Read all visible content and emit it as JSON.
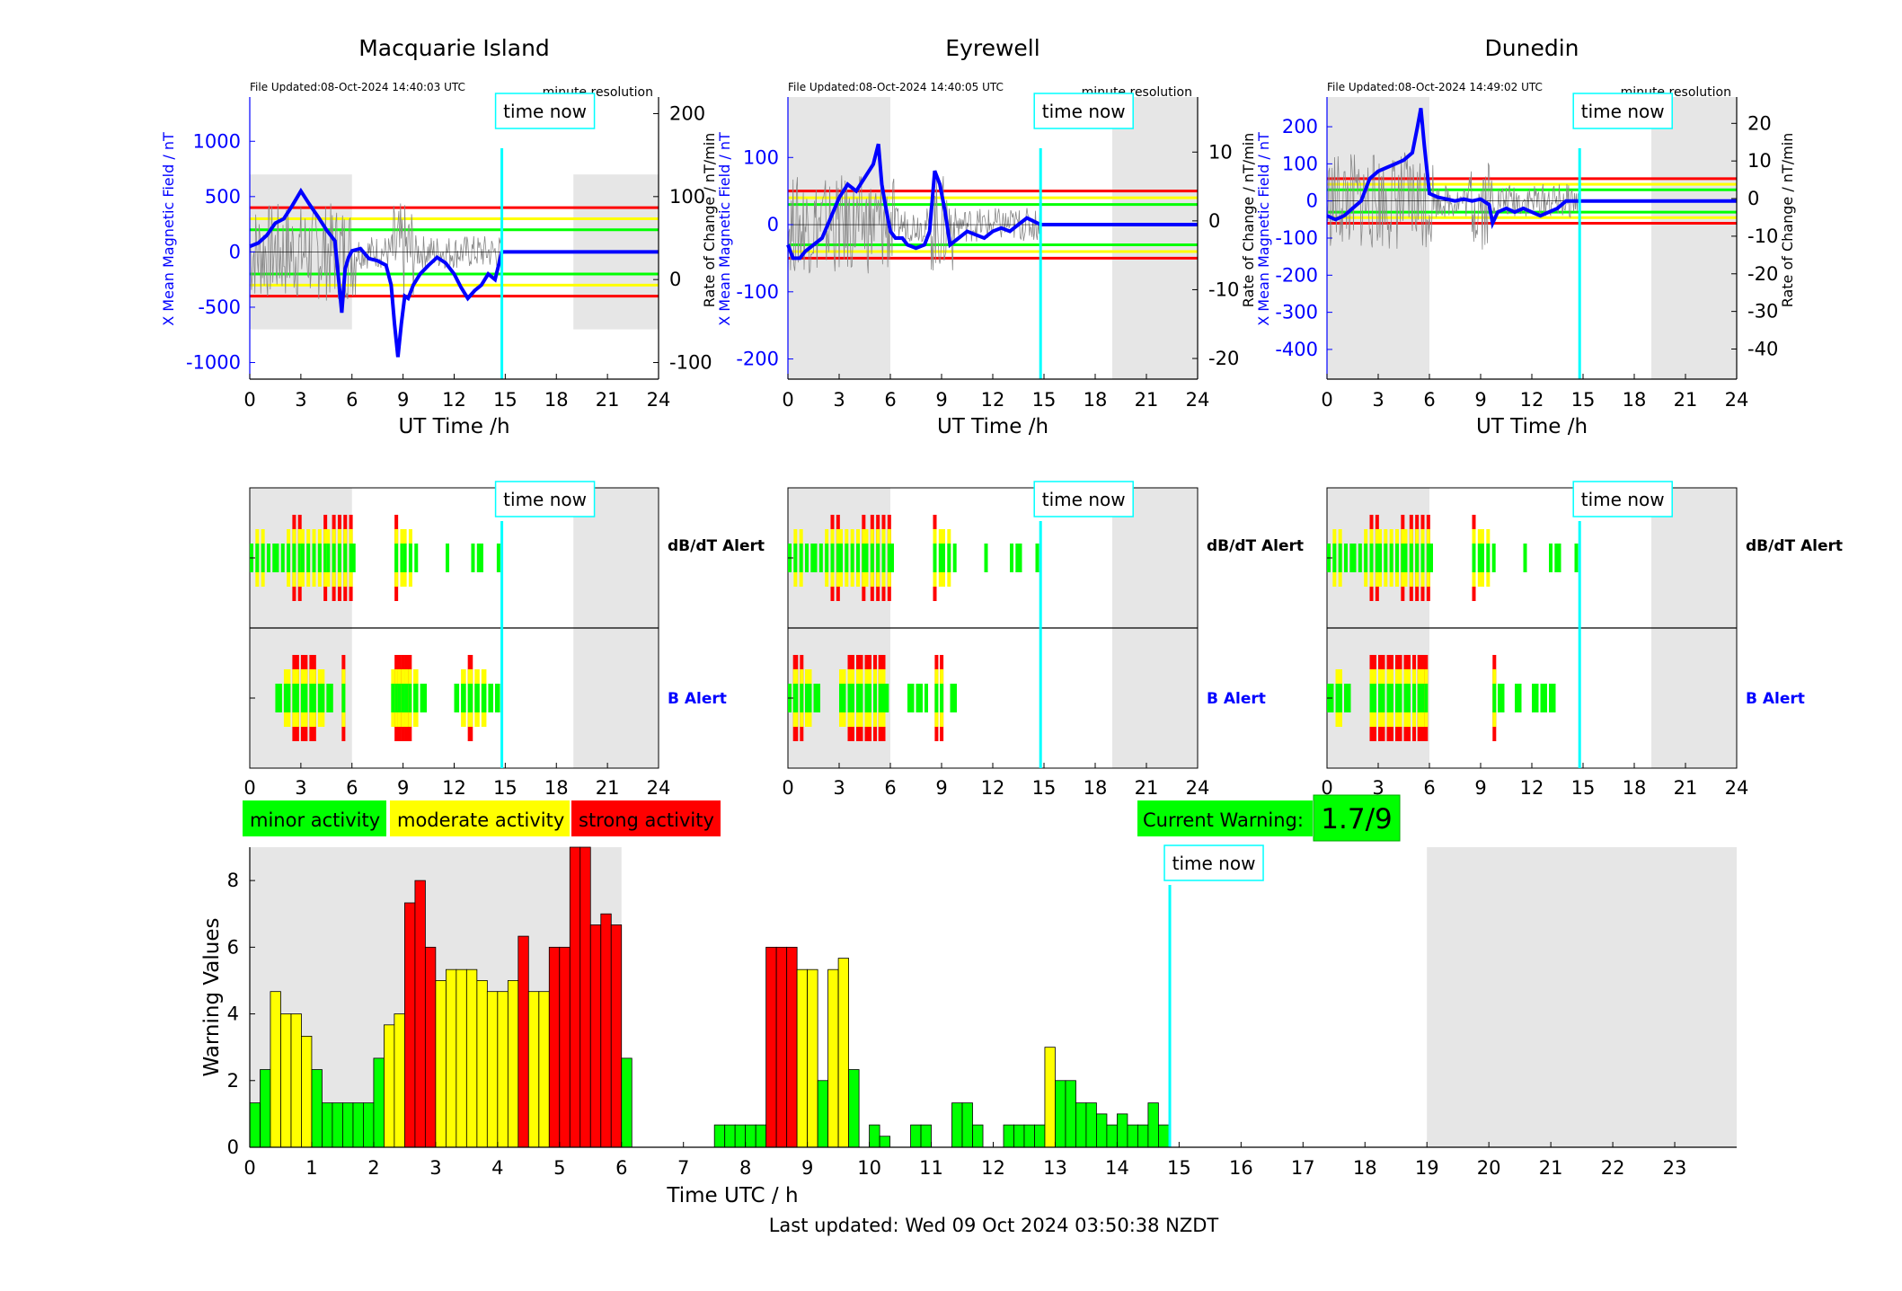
{
  "colors": {
    "minor": "#00ff00",
    "moderate": "#ffff00",
    "strong": "#ff0000",
    "time_now": "#00ffff",
    "mean_field": "#0000ff",
    "night_shade": "#e6e6e6"
  },
  "time_now_label": "time now",
  "time_now_h": 14.8,
  "ut_ticks": [
    "0",
    "3",
    "6",
    "9",
    "12",
    "15",
    "18",
    "21",
    "24"
  ],
  "ut_xlabel": "UT Time /h",
  "file_resolution": "minute resolution",
  "stations": [
    {
      "name": "Macquarie Island",
      "file_updated": "File Updated:08-Oct-2024 14:40:03 UTC",
      "ylabel_left": "X Mean Magnetic Field / nT",
      "ylabel_right": "Rate of Change / nT/min",
      "yticks_left": [
        "1000",
        "500",
        "0",
        "-500",
        "-1000"
      ],
      "yticks_right": [
        "200",
        "100",
        "0",
        "-100"
      ],
      "shade_ranges_h": [
        [
          0,
          6
        ],
        [
          19,
          24
        ]
      ],
      "thresholds_nT": {
        "minor": 200,
        "moderate": 300,
        "strong": 400
      },
      "chart_data": {
        "type": "line",
        "xlabel": "UT Time /h",
        "ylabel": "X Mean Magnetic Field / nT",
        "xlim": [
          0,
          24
        ],
        "ylim": [
          -1150,
          1400
        ],
        "series": [
          {
            "x": [
              0,
              0.5,
              1,
              1.5,
              2,
              2.5,
              3,
              3.5,
              4,
              4.5,
              5,
              5.4,
              5.6,
              5.8,
              6,
              6.5,
              7,
              7.5,
              8,
              8.3,
              8.5,
              8.7,
              8.9,
              9.1,
              9.3,
              9.6,
              10,
              10.5,
              11,
              11.5,
              12,
              12.4,
              12.8,
              13.2,
              13.6,
              14,
              14.4,
              14.8,
              24
            ],
            "values": [
              50,
              80,
              150,
              260,
              300,
              420,
              550,
              430,
              320,
              200,
              100,
              -550,
              -150,
              -50,
              10,
              30,
              -60,
              -80,
              -120,
              -300,
              -650,
              -950,
              -650,
              -400,
              -420,
              -300,
              -200,
              -120,
              -50,
              -100,
              -200,
              -320,
              -420,
              -350,
              -300,
              -200,
              -250,
              0,
              0
            ]
          }
        ]
      },
      "rate_range": [
        -120,
        220
      ]
    },
    {
      "name": "Eyrewell",
      "file_updated": "File Updated:08-Oct-2024 14:40:05 UTC",
      "ylabel_left": "X Mean Magnetic Field / nT",
      "ylabel_right": "Rate of Change / nT/min",
      "yticks_left": [
        "100",
        "0",
        "-100",
        "-200"
      ],
      "yticks_right": [
        "10",
        "0",
        "-10",
        "-20"
      ],
      "shade_ranges_h": [
        [
          0,
          6
        ],
        [
          19,
          24
        ]
      ],
      "thresholds_nT": {
        "minor": 30,
        "moderate": 40,
        "strong": 50
      },
      "chart_data": {
        "type": "line",
        "xlabel": "UT Time /h",
        "ylabel": "X Mean Magnetic Field / nT",
        "xlim": [
          0,
          24
        ],
        "ylim": [
          -230,
          190
        ],
        "series": [
          {
            "x": [
              0,
              0.3,
              0.7,
              1,
              1.5,
              2,
              2.5,
              3,
              3.5,
              4,
              4.5,
              5,
              5.3,
              5.5,
              5.7,
              6,
              6.3,
              6.7,
              7,
              7.5,
              8,
              8.3,
              8.6,
              8.9,
              9.2,
              9.5,
              10,
              10.5,
              11,
              11.5,
              12,
              12.5,
              13,
              13.5,
              14,
              14.8,
              24
            ],
            "values": [
              -30,
              -50,
              -50,
              -40,
              -30,
              -20,
              10,
              40,
              60,
              50,
              70,
              90,
              120,
              60,
              30,
              -10,
              -20,
              -20,
              -30,
              -35,
              -30,
              -10,
              80,
              60,
              20,
              -30,
              -20,
              -10,
              -15,
              -20,
              -10,
              -5,
              -10,
              0,
              10,
              0,
              0
            ]
          }
        ]
      },
      "rate_range": [
        -23,
        18
      ]
    },
    {
      "name": "Dunedin",
      "file_updated": "File Updated:08-Oct-2024 14:49:02 UTC",
      "ylabel_left": "X Mean Magnetic Field / nT",
      "ylabel_right": "Rate of Change / nT/min",
      "yticks_left": [
        "200",
        "100",
        "0",
        "-100",
        "-200",
        "-300",
        "-400"
      ],
      "yticks_right": [
        "20",
        "10",
        "0",
        "-10",
        "-20",
        "-30",
        "-40"
      ],
      "shade_ranges_h": [
        [
          0,
          6
        ],
        [
          19,
          24
        ]
      ],
      "thresholds_nT": {
        "minor": 30,
        "moderate": 45,
        "strong": 60
      },
      "chart_data": {
        "type": "line",
        "xlabel": "UT Time /h",
        "ylabel": "X Mean Magnetic Field / nT",
        "xlim": [
          0,
          24
        ],
        "ylim": [
          -480,
          280
        ],
        "series": [
          {
            "x": [
              0,
              0.5,
              1,
              1.5,
              2,
              2.5,
              3,
              3.5,
              4,
              4.5,
              5,
              5.3,
              5.5,
              5.7,
              6,
              6.5,
              7,
              7.5,
              8,
              8.5,
              9,
              9.5,
              9.7,
              10,
              10.5,
              11,
              11.5,
              12,
              12.5,
              13,
              13.5,
              14,
              14.8,
              24
            ],
            "values": [
              -40,
              -50,
              -40,
              -20,
              0,
              60,
              80,
              90,
              100,
              110,
              130,
              200,
              250,
              150,
              20,
              10,
              5,
              0,
              5,
              0,
              5,
              -10,
              -60,
              -30,
              -20,
              -30,
              -20,
              -30,
              -40,
              -30,
              -20,
              0,
              0,
              0
            ]
          }
        ]
      },
      "rate_range": [
        -48,
        27
      ]
    }
  ],
  "alert_panels": {
    "dbdt_label": "dB/dT Alert",
    "b_label": "B Alert"
  },
  "legend": {
    "minor": "minor activity",
    "moderate": "moderate activity",
    "strong": "strong activity"
  },
  "current_warning": {
    "label": "Current Warning:",
    "value": "1.7/9"
  },
  "warning_chart": {
    "chart_data": {
      "type": "bar",
      "xlabel": "Time UTC / h",
      "ylabel": "Warning Values",
      "xlim": [
        0,
        24
      ],
      "ylim": [
        0,
        9
      ],
      "x_ticks": [
        "0",
        "1",
        "2",
        "3",
        "4",
        "5",
        "6",
        "7",
        "8",
        "9",
        "10",
        "11",
        "12",
        "13",
        "14",
        "15",
        "16",
        "17",
        "18",
        "19",
        "20",
        "21",
        "22",
        "23"
      ],
      "y_ticks": [
        "0",
        "2",
        "4",
        "6",
        "8"
      ],
      "bar_width_h": 0.1667,
      "shade_ranges_h": [
        [
          0,
          6
        ],
        [
          19,
          24
        ]
      ],
      "time_now_h": 14.85,
      "bars": [
        {
          "t": 0.0,
          "v": 1.33
        },
        {
          "t": 0.167,
          "v": 2.33
        },
        {
          "t": 0.333,
          "v": 4.67
        },
        {
          "t": 0.5,
          "v": 4.0
        },
        {
          "t": 0.667,
          "v": 4.0
        },
        {
          "t": 0.833,
          "v": 3.33
        },
        {
          "t": 1.0,
          "v": 2.33
        },
        {
          "t": 1.167,
          "v": 1.33
        },
        {
          "t": 1.333,
          "v": 1.33
        },
        {
          "t": 1.5,
          "v": 1.33
        },
        {
          "t": 1.667,
          "v": 1.33
        },
        {
          "t": 1.833,
          "v": 1.33
        },
        {
          "t": 2.0,
          "v": 2.67
        },
        {
          "t": 2.167,
          "v": 3.67
        },
        {
          "t": 2.333,
          "v": 4.0
        },
        {
          "t": 2.5,
          "v": 7.33
        },
        {
          "t": 2.667,
          "v": 8.0
        },
        {
          "t": 2.833,
          "v": 6.0
        },
        {
          "t": 3.0,
          "v": 5.0
        },
        {
          "t": 3.167,
          "v": 5.33
        },
        {
          "t": 3.333,
          "v": 5.33
        },
        {
          "t": 3.5,
          "v": 5.33
        },
        {
          "t": 3.667,
          "v": 5.0
        },
        {
          "t": 3.833,
          "v": 4.67
        },
        {
          "t": 4.0,
          "v": 4.67
        },
        {
          "t": 4.167,
          "v": 5.0
        },
        {
          "t": 4.333,
          "v": 6.33
        },
        {
          "t": 4.5,
          "v": 4.67
        },
        {
          "t": 4.667,
          "v": 4.67
        },
        {
          "t": 4.833,
          "v": 6.0
        },
        {
          "t": 5.0,
          "v": 6.0
        },
        {
          "t": 5.167,
          "v": 9.0
        },
        {
          "t": 5.333,
          "v": 9.0
        },
        {
          "t": 5.5,
          "v": 6.67
        },
        {
          "t": 5.667,
          "v": 7.0
        },
        {
          "t": 5.833,
          "v": 6.67
        },
        {
          "t": 6.0,
          "v": 2.67
        },
        {
          "t": 7.5,
          "v": 0.67
        },
        {
          "t": 7.667,
          "v": 0.67
        },
        {
          "t": 7.833,
          "v": 0.67
        },
        {
          "t": 8.0,
          "v": 0.67
        },
        {
          "t": 8.167,
          "v": 0.67
        },
        {
          "t": 8.333,
          "v": 6.0
        },
        {
          "t": 8.5,
          "v": 6.0
        },
        {
          "t": 8.667,
          "v": 6.0
        },
        {
          "t": 8.833,
          "v": 5.33
        },
        {
          "t": 9.0,
          "v": 5.33
        },
        {
          "t": 9.167,
          "v": 2.0
        },
        {
          "t": 9.333,
          "v": 5.33
        },
        {
          "t": 9.5,
          "v": 5.67
        },
        {
          "t": 9.667,
          "v": 2.33
        },
        {
          "t": 10.0,
          "v": 0.67
        },
        {
          "t": 10.167,
          "v": 0.33
        },
        {
          "t": 10.667,
          "v": 0.67
        },
        {
          "t": 10.833,
          "v": 0.67
        },
        {
          "t": 11.333,
          "v": 1.33
        },
        {
          "t": 11.5,
          "v": 1.33
        },
        {
          "t": 11.667,
          "v": 0.67
        },
        {
          "t": 12.167,
          "v": 0.67
        },
        {
          "t": 12.333,
          "v": 0.67
        },
        {
          "t": 12.5,
          "v": 0.67
        },
        {
          "t": 12.667,
          "v": 0.67
        },
        {
          "t": 12.833,
          "v": 3.0
        },
        {
          "t": 13.0,
          "v": 2.0
        },
        {
          "t": 13.167,
          "v": 2.0
        },
        {
          "t": 13.333,
          "v": 1.33
        },
        {
          "t": 13.5,
          "v": 1.33
        },
        {
          "t": 13.667,
          "v": 1.0
        },
        {
          "t": 13.833,
          "v": 0.67
        },
        {
          "t": 14.0,
          "v": 1.0
        },
        {
          "t": 14.167,
          "v": 0.67
        },
        {
          "t": 14.333,
          "v": 0.67
        },
        {
          "t": 14.5,
          "v": 1.33
        },
        {
          "t": 14.667,
          "v": 0.67
        }
      ]
    }
  },
  "last_updated": "Last updated: Wed 09 Oct 2024 03:50:38 NZDT"
}
